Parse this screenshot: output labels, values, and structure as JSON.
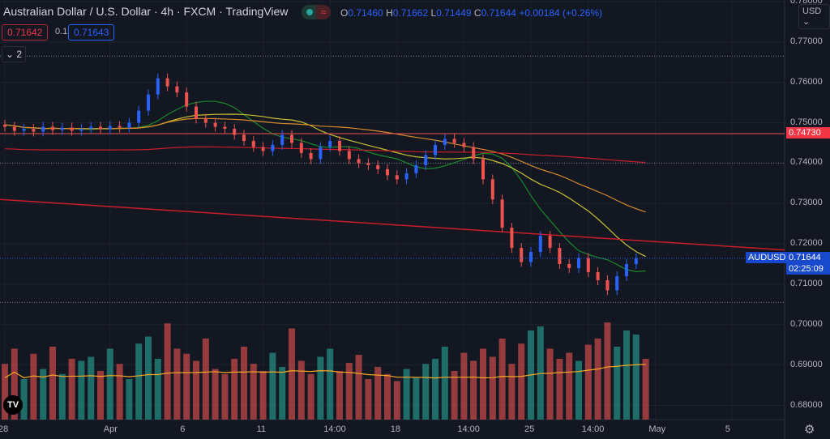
{
  "header": {
    "title": "Australian Dollar / U.S. Dollar · 4h · FXCM · TradingView",
    "ohlc": {
      "o_label": "O",
      "o": "0.71460",
      "h_label": "H",
      "h": "0.71662",
      "l_label": "L",
      "l": "0.71449",
      "c_label": "C",
      "c": "0.71644",
      "change": "+0.00184 (+0.26%)"
    },
    "sell_price": "0.71642",
    "spread": "0.1",
    "buy_price": "0.71643",
    "collapse_label": "⌄ 2",
    "status_icon": "market-open-dot",
    "wave_icon": "≈"
  },
  "currency_selector": "USD ⌄",
  "colors": {
    "bg": "#131722",
    "up": "#2962ff",
    "down": "#ef5350",
    "vol_up": "#26a69a",
    "vol_down": "#ef5350",
    "ma1": "#1b8a2c",
    "ma2": "#c8c032",
    "ma3": "#d68a2a",
    "ma4": "#c81e28",
    "trend": "#c81e28"
  },
  "chart_data": {
    "type": "candlestick",
    "symbol": "AUDUSD",
    "last_price": "0.71644",
    "countdown": "02:25:09",
    "hline_label": "0.74730",
    "hline": 0.7473,
    "dotted_levels": [
      0.7665,
      0.74,
      0.7055
    ],
    "trendline": {
      "from": 0.731,
      "to": 0.7185
    },
    "ylim": [
      0.6765,
      0.7804
    ],
    "price_ticks": [
      "0.78000",
      "0.77000",
      "0.76000",
      "0.75000",
      "0.74000",
      "0.73000",
      "0.72000",
      "0.71000",
      "0.70000",
      "0.69000",
      "0.68000"
    ],
    "x_ticks": [
      {
        "label": "28",
        "i": 0
      },
      {
        "label": "Apr",
        "i": 11
      },
      {
        "label": "6",
        "i": 19
      },
      {
        "label": "11",
        "i": 27
      },
      {
        "label": "14:00",
        "i": 34
      },
      {
        "label": "18",
        "i": 41
      },
      {
        "label": "14:00",
        "i": 48
      },
      {
        "label": "25",
        "i": 55
      },
      {
        "label": "14:00",
        "i": 61
      },
      {
        "label": "May",
        "i": 68
      },
      {
        "label": "5",
        "i": 76
      }
    ],
    "closes": [
      0.7495,
      0.749,
      0.748,
      0.7485,
      0.7478,
      0.749,
      0.7482,
      0.7488,
      0.748,
      0.7485,
      0.749,
      0.7484,
      0.7492,
      0.7488,
      0.75,
      0.753,
      0.757,
      0.761,
      0.759,
      0.7575,
      0.754,
      0.751,
      0.75,
      0.749,
      0.7485,
      0.747,
      0.7455,
      0.744,
      0.743,
      0.7445,
      0.747,
      0.745,
      0.7425,
      0.741,
      0.744,
      0.7455,
      0.743,
      0.741,
      0.74,
      0.7395,
      0.7385,
      0.737,
      0.736,
      0.7375,
      0.7395,
      0.742,
      0.7445,
      0.746,
      0.745,
      0.744,
      0.741,
      0.736,
      0.731,
      0.724,
      0.719,
      0.7155,
      0.718,
      0.722,
      0.719,
      0.715,
      0.714,
      0.7165,
      0.713,
      0.711,
      0.7085,
      0.712,
      0.715,
      0.7164
    ],
    "volumes": [
      55,
      70,
      40,
      65,
      50,
      72,
      45,
      60,
      58,
      62,
      48,
      70,
      55,
      40,
      75,
      82,
      60,
      95,
      70,
      65,
      58,
      80,
      50,
      45,
      60,
      72,
      55,
      48,
      66,
      52,
      90,
      58,
      45,
      62,
      70,
      48,
      56,
      64,
      40,
      52,
      45,
      38,
      50,
      42,
      55,
      60,
      72,
      48,
      66,
      58,
      70,
      62,
      80,
      55,
      75,
      88,
      92,
      70,
      60,
      66,
      58,
      74,
      80,
      96,
      72,
      88,
      84,
      60
    ]
  }
}
